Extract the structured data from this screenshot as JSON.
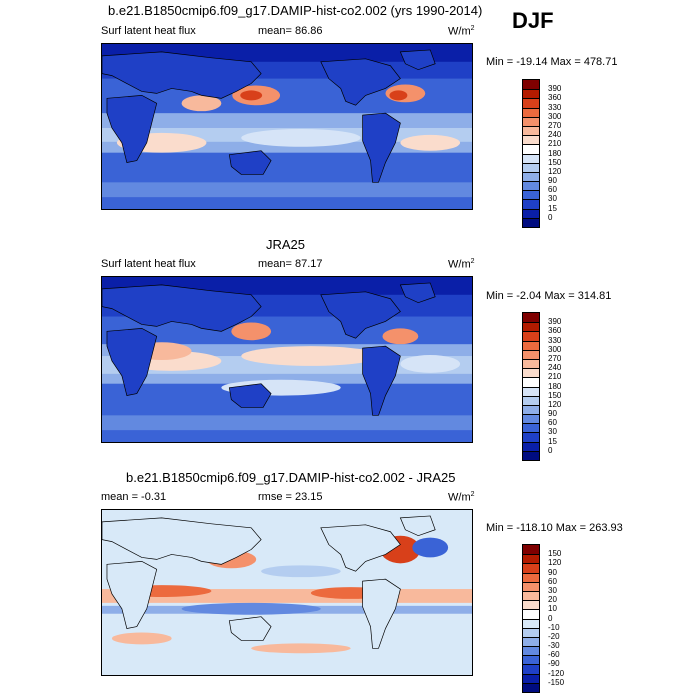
{
  "season": "DJF",
  "units_main": "W/m",
  "units_sup": "2",
  "panels": [
    {
      "title": "b.e21.B1850cmip6.f09_g17.DAMIP-hist-co2.002 (yrs 1990-2014)",
      "left_label": "Surf latent heat flux",
      "mean_label": "mean=  86.86",
      "minmax": "Min = -19.14 Max = 478.71",
      "ticks": [
        "390",
        "360",
        "330",
        "300",
        "270",
        "240",
        "210",
        "180",
        "150",
        "120",
        "90",
        "60",
        "30",
        "15",
        "0"
      ]
    },
    {
      "title": "JRA25",
      "left_label": "Surf latent heat flux",
      "mean_label": "mean=  87.17",
      "minmax": "Min =  -2.04 Max = 314.81",
      "ticks": [
        "390",
        "360",
        "330",
        "300",
        "270",
        "240",
        "210",
        "180",
        "150",
        "120",
        "90",
        "60",
        "30",
        "15",
        "0"
      ]
    },
    {
      "title": "b.e21.B1850cmip6.f09_g17.DAMIP-hist-co2.002 - JRA25",
      "left_label": "mean =  -0.31",
      "mean_label": "rmse =  23.15",
      "minmax": "Min = -118.10 Max = 263.93",
      "ticks": [
        "150",
        "120",
        "90",
        "60",
        "30",
        "20",
        "10",
        "0",
        "-10",
        "-20",
        "-30",
        "-60",
        "-90",
        "-120",
        "-150"
      ]
    }
  ],
  "colors": {
    "flux_scale": [
      "#7f0000",
      "#b31b00",
      "#d8401a",
      "#ec6a3e",
      "#f4916b",
      "#f8b99c",
      "#fadccc",
      "#ffffff",
      "#d6e4f7",
      "#b4cdf0",
      "#8eaee8",
      "#6289e0",
      "#3a63d6",
      "#1f40c6",
      "#0a1fa8",
      "#000c80"
    ],
    "diff_scale": [
      "#7f0000",
      "#b31b00",
      "#d8401a",
      "#ec6a3e",
      "#f4916b",
      "#f8b99c",
      "#fadccc",
      "#ffffff",
      "#d8e9f8",
      "#b4cdf0",
      "#8eaee8",
      "#6289e0",
      "#3a63d6",
      "#1f40c6",
      "#0a1fa8",
      "#000c80"
    ]
  }
}
